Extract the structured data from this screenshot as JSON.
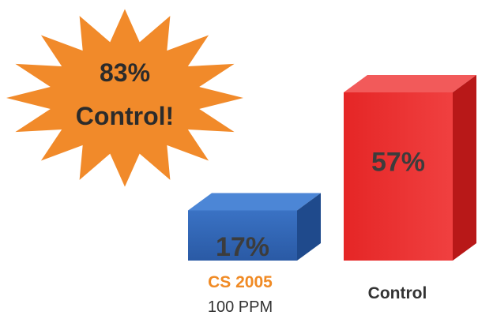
{
  "chart_data": {
    "type": "bar",
    "categories": [
      "CS 2005",
      "Control"
    ],
    "category_sublabels": [
      "100 PPM",
      ""
    ],
    "values": [
      17,
      57
    ],
    "data_labels": [
      "17%",
      "57%"
    ],
    "ylim": [
      0,
      70
    ]
  },
  "callout": {
    "line1": "83%",
    "line2": "Control!"
  },
  "colors": {
    "bar_cs2005": "#2f64b5",
    "bar_control": "#e82b2b",
    "cs2005_label": "#f08a24",
    "control_label": "#333333",
    "starburst": "#f18a2a",
    "value_text": "#3c3c3c"
  }
}
